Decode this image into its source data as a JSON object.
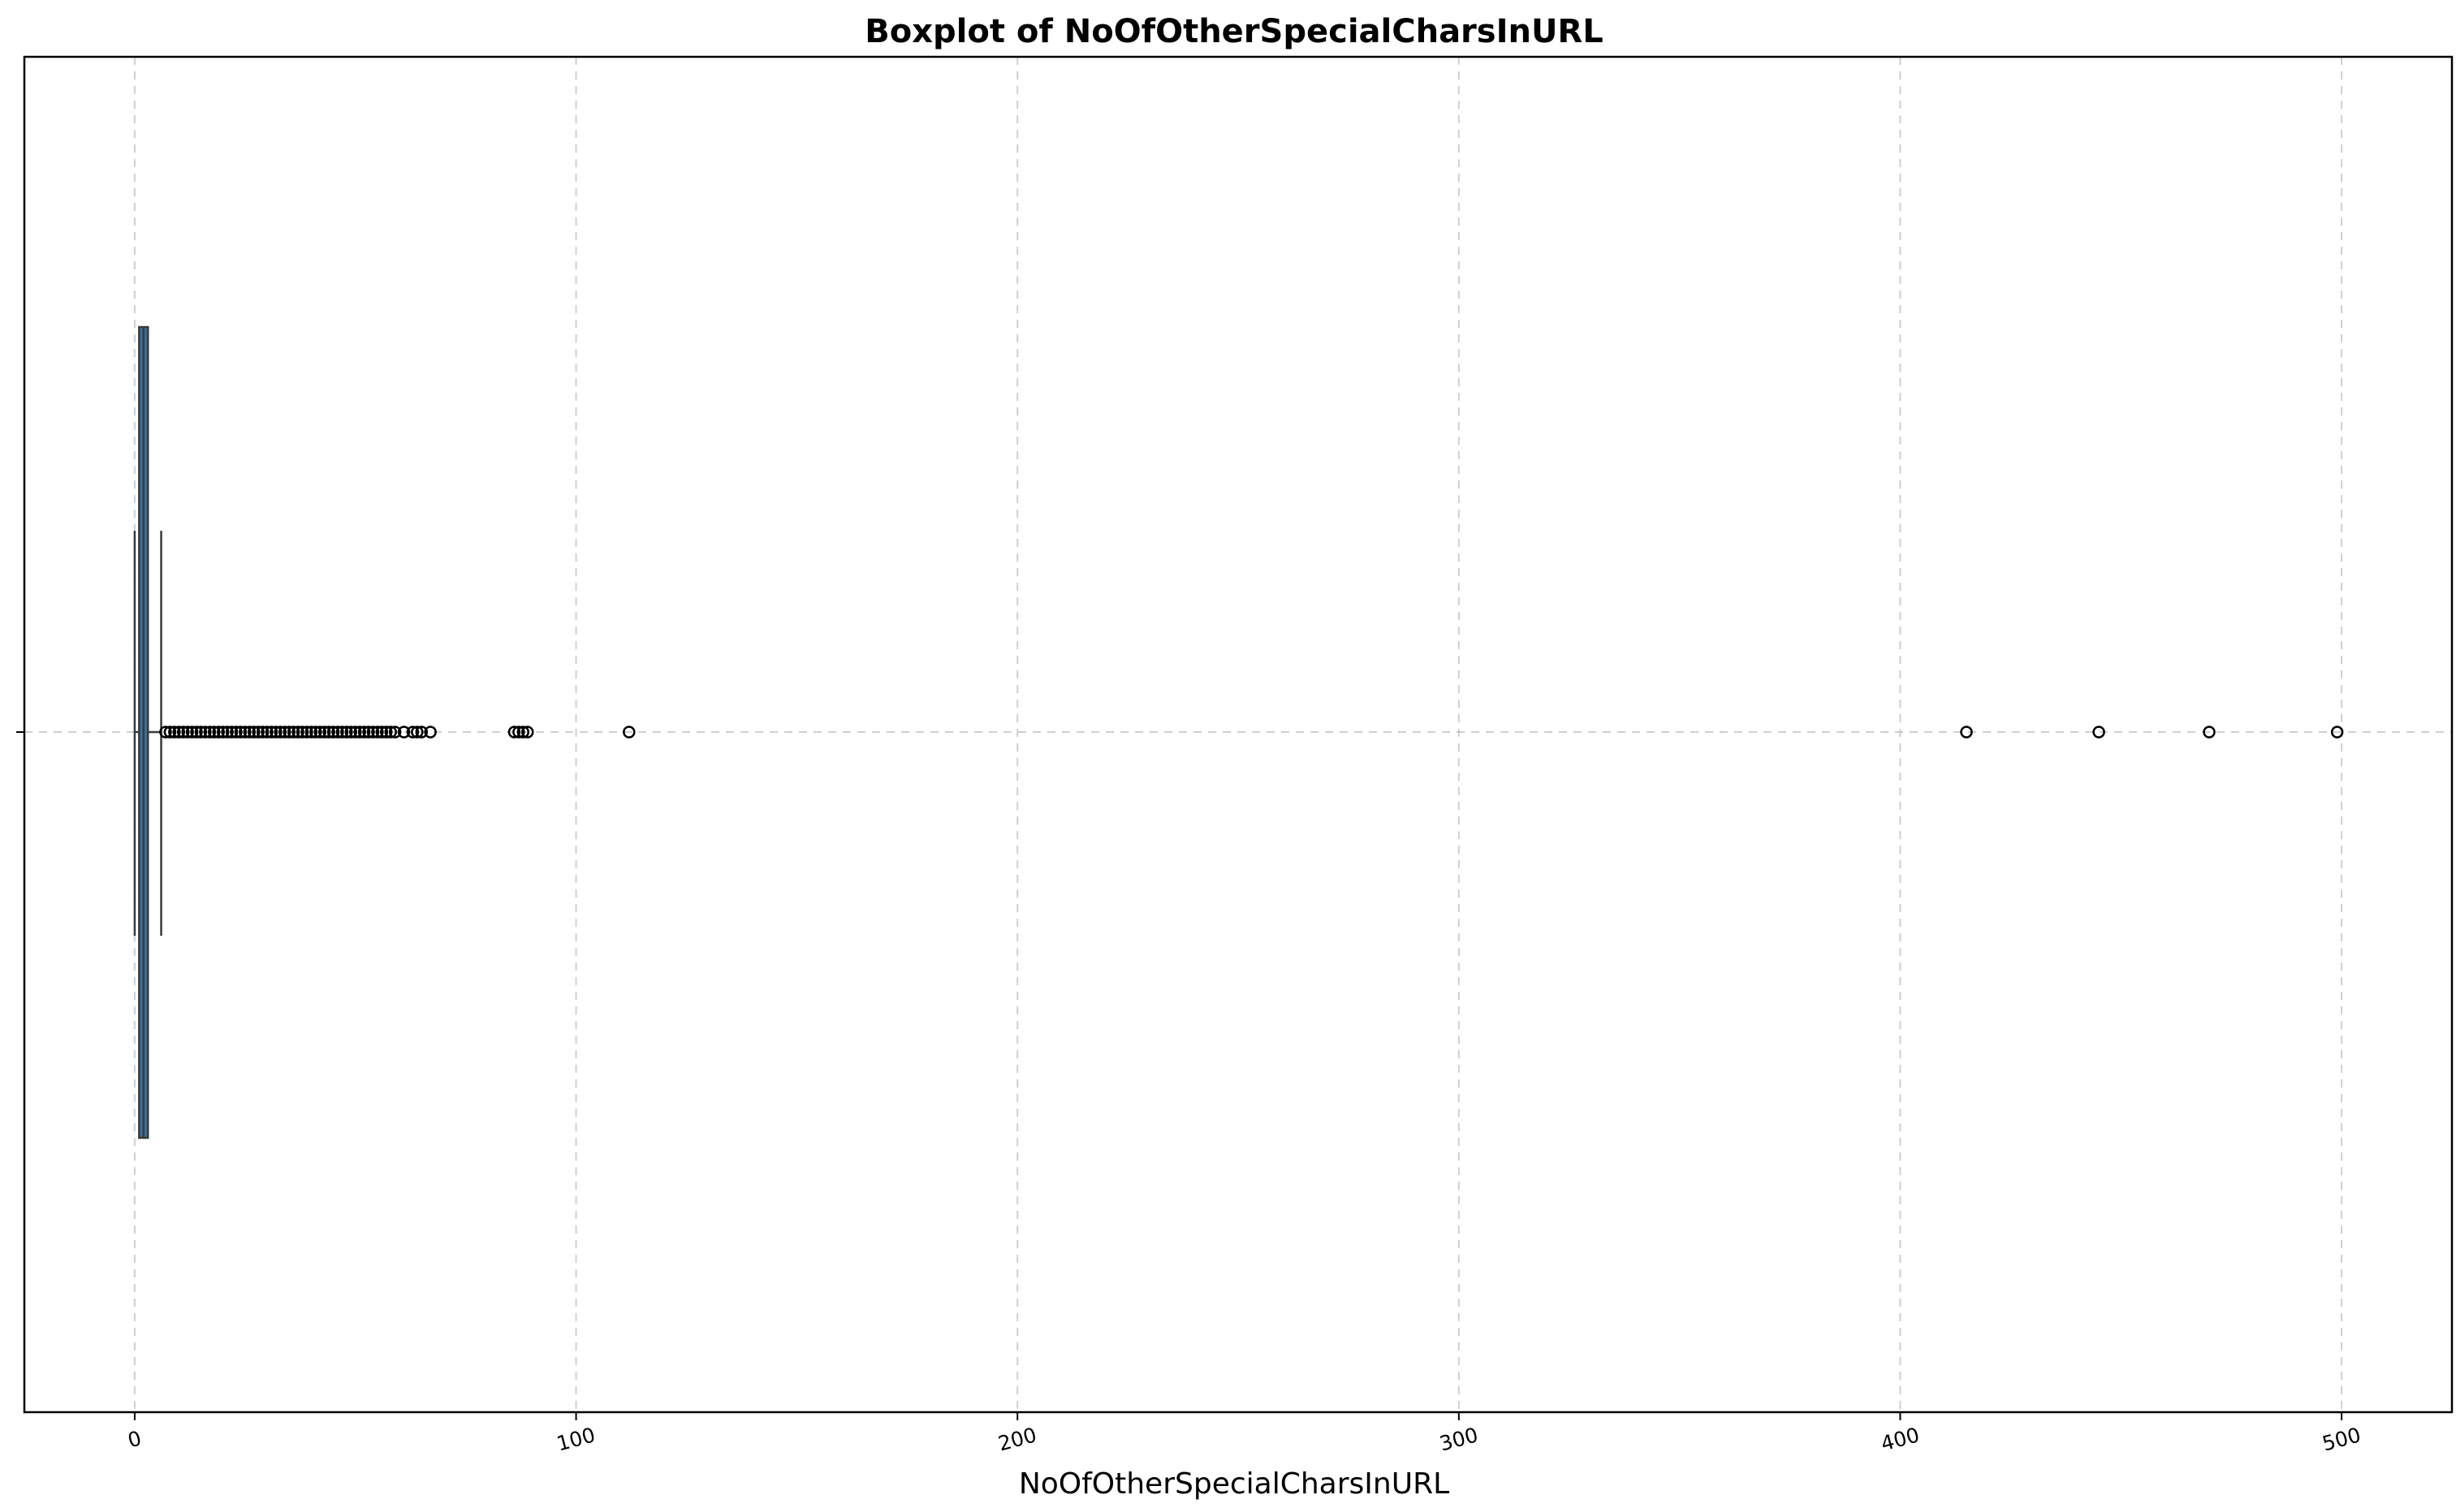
{
  "chart_data": {
    "type": "boxplot",
    "title": "Boxplot of NoOfOtherSpecialCharsInURL",
    "xlabel": "NoOfOtherSpecialCharsInURL",
    "ylabel": "",
    "xlim": [
      -25,
      525
    ],
    "xticks": [
      0,
      100,
      200,
      300,
      400,
      500
    ],
    "xtick_labels": [
      "0",
      "100",
      "200",
      "300",
      "400",
      "500"
    ],
    "xtick_rotation": -15,
    "grid": true,
    "orientation": "horizontal",
    "box": {
      "whisker_low": 0,
      "q1": 1,
      "median": 2,
      "q3": 3,
      "whisker_high": 6,
      "fill_color": "#3274a1",
      "line_color": "#3a3a3a"
    },
    "outliers": [
      7,
      8,
      9,
      10,
      11,
      12,
      13,
      14,
      15,
      16,
      17,
      18,
      19,
      20,
      21,
      22,
      23,
      24,
      25,
      26,
      27,
      28,
      29,
      30,
      31,
      32,
      33,
      34,
      35,
      36,
      37,
      38,
      39,
      40,
      41,
      42,
      43,
      44,
      45,
      46,
      47,
      48,
      49,
      50,
      51,
      52,
      53,
      54,
      55,
      56,
      57,
      58,
      59,
      61,
      63,
      64,
      65,
      67,
      86,
      87,
      88,
      89,
      112,
      415,
      445,
      470,
      499
    ]
  }
}
